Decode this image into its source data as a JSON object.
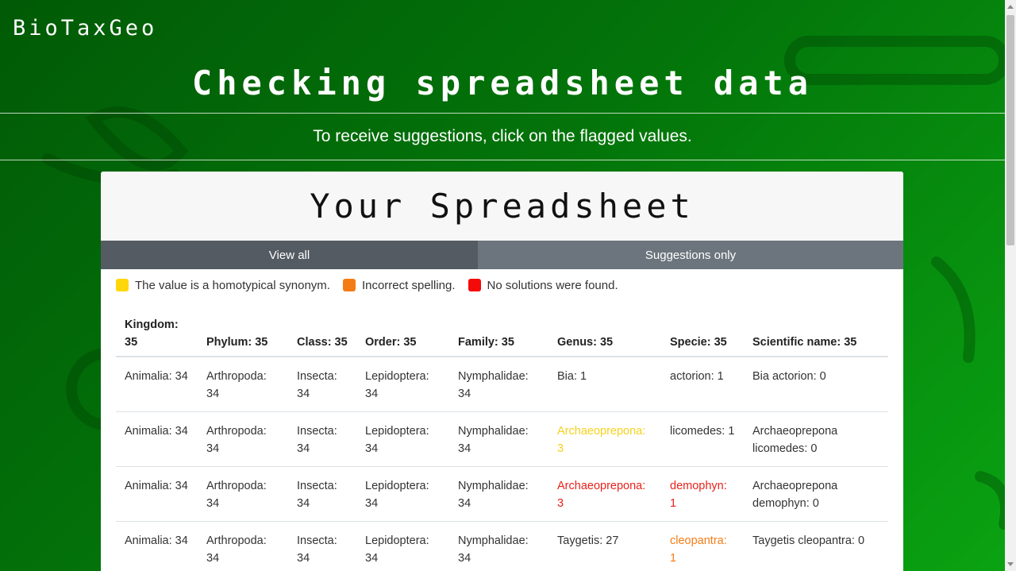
{
  "app": {
    "brand": "BioTaxGeo"
  },
  "header": {
    "title": "Checking spreadsheet data",
    "subtitle": "To receive suggestions, click on the flagged values."
  },
  "card": {
    "title": "Your Spreadsheet",
    "tabs": [
      {
        "label": "View all",
        "active": true
      },
      {
        "label": "Suggestions only",
        "active": false
      }
    ],
    "legend": [
      {
        "color": "#ffd60a",
        "label": "The value is a homotypical synonym."
      },
      {
        "color": "#f57c15",
        "label": "Incorrect spelling."
      },
      {
        "color": "#f50a0a",
        "label": "No solutions were found."
      }
    ]
  },
  "table": {
    "columns": [
      "Kingdom: 35",
      "Phylum: 35",
      "Class: 35",
      "Order: 35",
      "Family: 35",
      "Genus: 35",
      "Specie: 35",
      "Scientific name: 35"
    ],
    "rows": [
      [
        "Animalia: 34",
        "Arthropoda: 34",
        "Insecta: 34",
        "Lepidoptera: 34",
        "Nymphalidae: 34",
        "Bia: 1",
        "actorion: 1",
        "Bia actorion: 0"
      ],
      [
        "Animalia: 34",
        "Arthropoda: 34",
        "Insecta: 34",
        "Lepidoptera: 34",
        "Nymphalidae: 34",
        "Archaeoprepona: 3",
        "licomedes: 1",
        "Archaeoprepona licomedes: 0"
      ],
      [
        "Animalia: 34",
        "Arthropoda: 34",
        "Insecta: 34",
        "Lepidoptera: 34",
        "Nymphalidae: 34",
        "Archaeoprepona: 3",
        "demophyn: 1",
        "Archaeoprepona demophyn: 0"
      ],
      [
        "Animalia: 34",
        "Arthropoda: 34",
        "Insecta: 34",
        "Lepidoptera: 34",
        "Nymphalidae: 34",
        "Taygetis: 27",
        "cleopantra: 1",
        "Taygetis cleopantra: 0"
      ]
    ],
    "flags": [
      [
        null,
        null,
        null,
        null,
        null,
        null,
        null,
        null
      ],
      [
        null,
        null,
        null,
        null,
        null,
        "synonym",
        null,
        null
      ],
      [
        null,
        null,
        null,
        null,
        null,
        "not-found",
        "not-found",
        null
      ],
      [
        null,
        null,
        null,
        null,
        null,
        null,
        "spelling",
        null
      ]
    ]
  }
}
